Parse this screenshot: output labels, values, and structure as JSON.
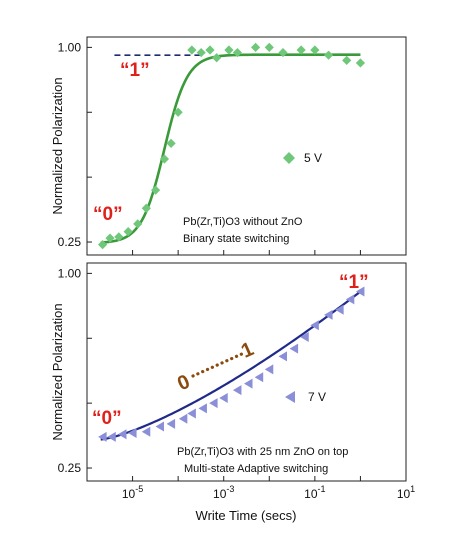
{
  "chart_data": [
    {
      "type": "scatter",
      "panel": "top",
      "xscale": "log",
      "xlim": [
        1e-06,
        10
      ],
      "ylim": [
        0.2,
        1.04
      ],
      "ylabel": "Normalized Polarization",
      "yticks": [
        {
          "value": 1.0,
          "label": "1.00"
        },
        {
          "value": 0.25,
          "label": "0.25"
        }
      ],
      "annotations": [
        "Pb(Zr,Ti)O3 without ZnO",
        "Binary state switching"
      ],
      "state_labels": {
        "low": "“0”",
        "high": "“1”"
      },
      "dashed_level": 0.97,
      "colors": {
        "points": "#6fc77a",
        "fit": "#3a9a3a",
        "dashed": "#1f2a70",
        "state": "#e0201b"
      },
      "series": [
        {
          "name": "5 V",
          "marker": "diamond",
          "points": [
            {
              "x": 2.2e-06,
              "y": 0.24
            },
            {
              "x": 3.2e-06,
              "y": 0.265
            },
            {
              "x": 5e-06,
              "y": 0.27
            },
            {
              "x": 8e-06,
              "y": 0.29
            },
            {
              "x": 1.3e-05,
              "y": 0.32
            },
            {
              "x": 2e-05,
              "y": 0.38
            },
            {
              "x": 3.2e-05,
              "y": 0.45
            },
            {
              "x": 5e-05,
              "y": 0.57
            },
            {
              "x": 7e-05,
              "y": 0.63
            },
            {
              "x": 0.0001,
              "y": 0.75
            },
            {
              "x": 0.0002,
              "y": 0.99
            },
            {
              "x": 0.00032,
              "y": 0.98
            },
            {
              "x": 0.0005,
              "y": 0.99
            },
            {
              "x": 0.0007,
              "y": 0.96
            },
            {
              "x": 0.0013,
              "y": 0.99
            },
            {
              "x": 0.002,
              "y": 0.98
            },
            {
              "x": 0.005,
              "y": 1.0
            },
            {
              "x": 0.01,
              "y": 1.0
            },
            {
              "x": 0.02,
              "y": 0.98
            },
            {
              "x": 0.05,
              "y": 0.99
            },
            {
              "x": 0.1,
              "y": 0.99
            },
            {
              "x": 0.2,
              "y": 0.97
            },
            {
              "x": 0.5,
              "y": 0.95
            },
            {
              "x": 1.0,
              "y": 0.94
            }
          ]
        }
      ],
      "fit": {
        "y_low": 0.245,
        "y_high": 0.972,
        "x_mid": 5e-05,
        "width_decades": 0.25
      }
    },
    {
      "type": "scatter",
      "panel": "bottom",
      "xscale": "log",
      "xlim": [
        1e-06,
        10
      ],
      "ylim": [
        0.2,
        1.04
      ],
      "xlabel": "Write Time (secs)",
      "ylabel": "Normalized Polarization",
      "yticks": [
        {
          "value": 1.0,
          "label": "1.00"
        },
        {
          "value": 0.25,
          "label": "0.25"
        }
      ],
      "xticks": [
        {
          "value": 1e-05,
          "base": "10",
          "exp": "-5"
        },
        {
          "value": 0.001,
          "base": "10",
          "exp": "-3"
        },
        {
          "value": 0.1,
          "base": "10",
          "exp": "-1"
        },
        {
          "value": 10,
          "base": "10",
          "exp": "1"
        }
      ],
      "annotations": [
        "Pb(Zr,Ti)O3 with 25 nm ZnO on top",
        "Multi-state Adaptive switching"
      ],
      "state_labels": {
        "low": "“0”",
        "high": "“1”"
      },
      "range_label": {
        "start": "0",
        "end": "1"
      },
      "colors": {
        "points": "#8a8fd8",
        "fit": "#1f2a8a",
        "range": "#8b4a0e",
        "state": "#e0201b"
      },
      "series": [
        {
          "name": "7 V",
          "marker": "triangle-left",
          "points": [
            {
              "x": 2.2e-06,
              "y": 0.37
            },
            {
              "x": 3.5e-06,
              "y": 0.37
            },
            {
              "x": 6e-06,
              "y": 0.38
            },
            {
              "x": 1e-05,
              "y": 0.385
            },
            {
              "x": 2e-05,
              "y": 0.39
            },
            {
              "x": 4e-05,
              "y": 0.41
            },
            {
              "x": 7e-05,
              "y": 0.42
            },
            {
              "x": 0.00013,
              "y": 0.44
            },
            {
              "x": 0.0002,
              "y": 0.46
            },
            {
              "x": 0.00035,
              "y": 0.48
            },
            {
              "x": 0.0006,
              "y": 0.5
            },
            {
              "x": 0.001,
              "y": 0.52
            },
            {
              "x": 0.002,
              "y": 0.55
            },
            {
              "x": 0.0035,
              "y": 0.575
            },
            {
              "x": 0.006,
              "y": 0.6
            },
            {
              "x": 0.01,
              "y": 0.63
            },
            {
              "x": 0.02,
              "y": 0.68
            },
            {
              "x": 0.035,
              "y": 0.71
            },
            {
              "x": 0.06,
              "y": 0.755
            },
            {
              "x": 0.1,
              "y": 0.8
            },
            {
              "x": 0.2,
              "y": 0.84
            },
            {
              "x": 0.35,
              "y": 0.86
            },
            {
              "x": 0.6,
              "y": 0.9
            },
            {
              "x": 1.0,
              "y": 0.93
            }
          ]
        }
      ],
      "fit": {
        "y_start": 0.36,
        "y_end": 0.93,
        "exponent": 1.35
      }
    }
  ]
}
